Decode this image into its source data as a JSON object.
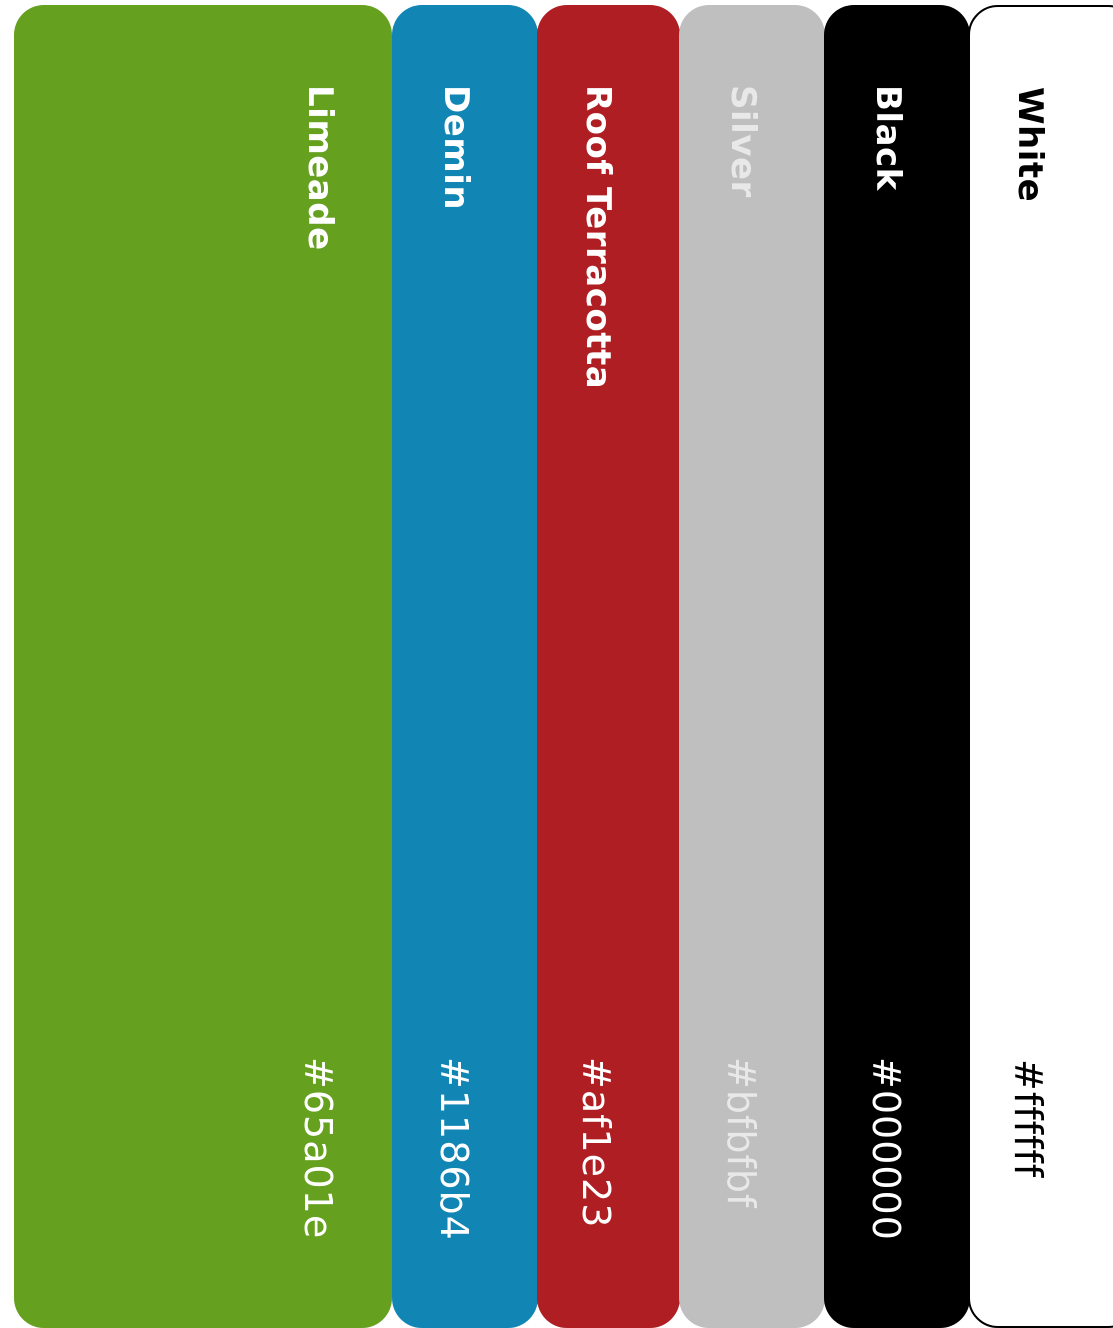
{
  "palette": {
    "swatches": [
      {
        "name": "Limeade",
        "hex": "#65a01e",
        "background": "#65a01e",
        "text_color": "#ffffff"
      },
      {
        "name": "Demin",
        "hex": "#1186b4",
        "background": "#1186b4",
        "text_color": "#ffffff"
      },
      {
        "name": "Roof Terracotta",
        "hex": "#af1e23",
        "background": "#af1e23",
        "text_color": "#ffffff"
      },
      {
        "name": "Silver",
        "hex": "#bfbfbf",
        "background": "#bfbfbf",
        "text_color": "#e8e8e8"
      },
      {
        "name": "Black",
        "hex": "#000000",
        "background": "#000000",
        "text_color": "#ffffff"
      },
      {
        "name": "White",
        "hex": "#ffffff",
        "background": "#ffffff",
        "text_color": "#000000"
      }
    ]
  }
}
